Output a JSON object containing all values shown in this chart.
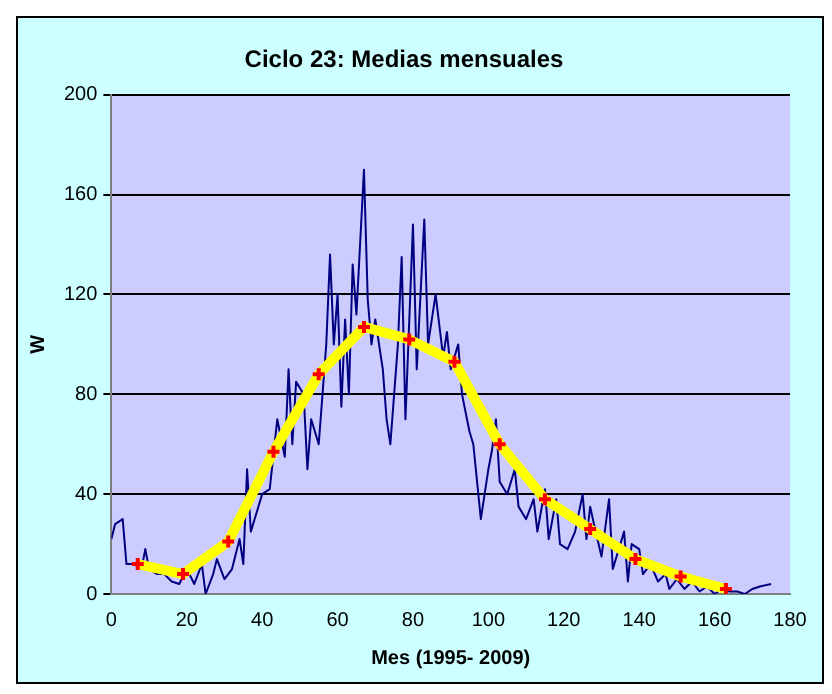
{
  "chart_data": {
    "type": "line",
    "title": "Ciclo 23: Medias mensuales",
    "xlabel": "Mes (1995- 2009)",
    "ylabel": "W",
    "xlim": [
      0,
      180
    ],
    "xticks": [
      0,
      20,
      40,
      60,
      80,
      100,
      120,
      140,
      160,
      180
    ],
    "ylim": [
      0,
      200
    ],
    "yticks": [
      0,
      40,
      80,
      120,
      160,
      200
    ],
    "grid": "y",
    "legend": false,
    "series": [
      {
        "color": "#000080",
        "marker": "none",
        "x": [
          0,
          1,
          3,
          4,
          6,
          8,
          9,
          10,
          12,
          14,
          16,
          18,
          20,
          22,
          24,
          25,
          27,
          28,
          30,
          32,
          34,
          35,
          36,
          37,
          38,
          40,
          42,
          44,
          46,
          47,
          48,
          49,
          51,
          52,
          53,
          55,
          56,
          57,
          58,
          59,
          60,
          61,
          62,
          63,
          64,
          65,
          67,
          68,
          69,
          70,
          72,
          73,
          74,
          76,
          77,
          78,
          80,
          81,
          82,
          83,
          84,
          85,
          86,
          88,
          89,
          90,
          92,
          93,
          95,
          96,
          98,
          100,
          101,
          102,
          103,
          105,
          107,
          108,
          110,
          112,
          113,
          115,
          116,
          118,
          119,
          121,
          123,
          125,
          126,
          127,
          128,
          130,
          132,
          133,
          134,
          136,
          137,
          138,
          140,
          141,
          143,
          145,
          147,
          148,
          150,
          152,
          154,
          156,
          158,
          160,
          162,
          164,
          166,
          168,
          170,
          172,
          175
        ],
        "values": [
          22,
          28,
          30,
          12,
          12,
          10,
          18,
          10,
          8,
          8,
          5,
          4,
          10,
          4,
          12,
          0,
          8,
          14,
          6,
          10,
          22,
          12,
          50,
          25,
          30,
          40,
          42,
          70,
          55,
          90,
          60,
          85,
          80,
          50,
          70,
          60,
          80,
          100,
          136,
          100,
          120,
          75,
          110,
          80,
          132,
          112,
          170,
          118,
          100,
          110,
          90,
          70,
          60,
          100,
          135,
          70,
          148,
          90,
          120,
          150,
          100,
          110,
          120,
          95,
          105,
          90,
          100,
          80,
          65,
          60,
          30,
          50,
          58,
          70,
          45,
          40,
          50,
          35,
          30,
          38,
          25,
          42,
          22,
          38,
          20,
          18,
          25,
          40,
          22,
          35,
          28,
          15,
          38,
          10,
          15,
          25,
          5,
          20,
          18,
          8,
          12,
          5,
          8,
          2,
          6,
          2,
          5,
          1,
          3,
          0,
          2,
          1,
          1,
          0,
          2,
          3,
          4
        ]
      },
      {
        "color": "#ffff00",
        "marker": "cross",
        "x": [
          7,
          19,
          31,
          43,
          55,
          67,
          79,
          91,
          103,
          115,
          127,
          139,
          151,
          163
        ],
        "values": [
          12,
          8,
          21,
          57,
          88,
          107,
          102,
          93,
          60,
          38,
          26,
          14,
          7,
          2
        ]
      }
    ]
  }
}
